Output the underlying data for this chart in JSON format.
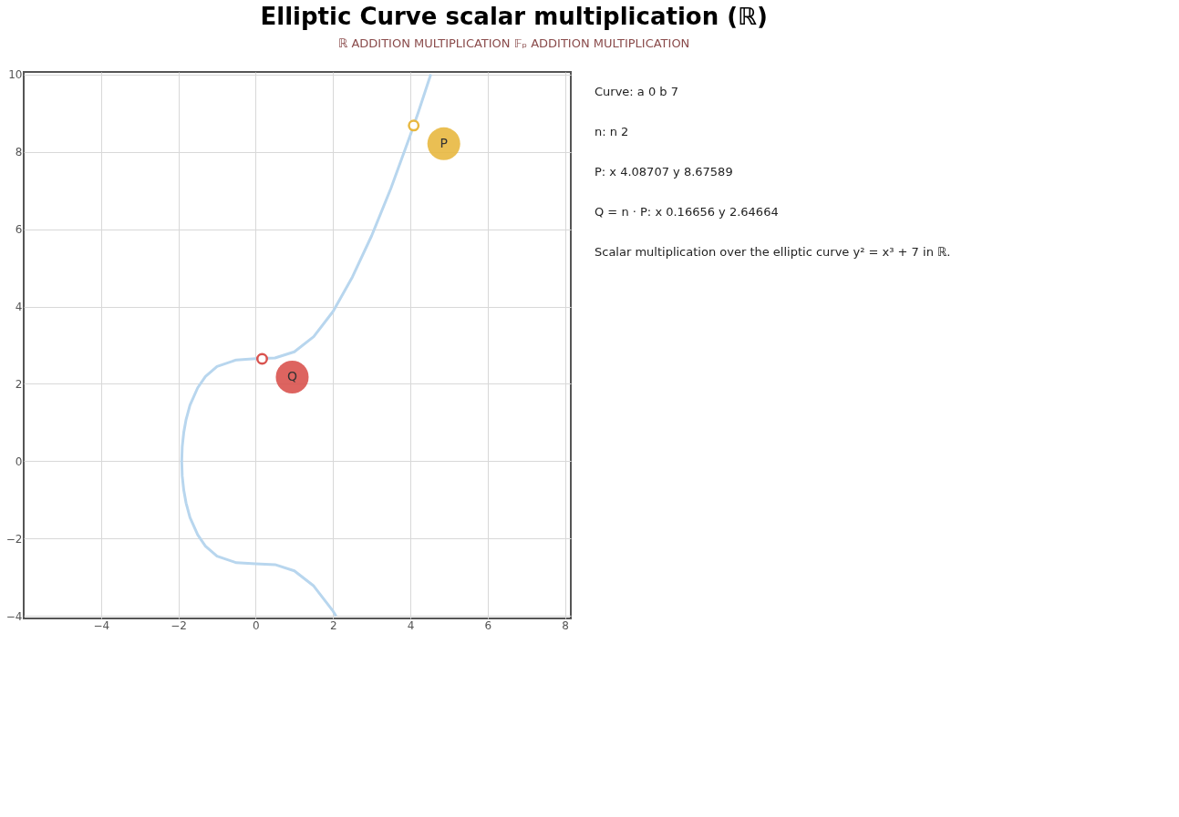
{
  "chart_data": {
    "type": "line",
    "title": "Elliptic Curve scalar multiplication (ℝ)",
    "subtitle": "ℝ    ADDITION    MULTIPLICATION        𝔽ₚ    ADDITION    MULTIPLICATION",
    "xlim": [
      -6,
      8.15
    ],
    "ylim": [
      -4.06,
      10.06
    ],
    "xticks": [
      -4,
      -2,
      0,
      2,
      4,
      6,
      8
    ],
    "yticks": [
      -4,
      -2,
      0,
      2,
      4,
      6,
      8,
      10
    ],
    "grid": true,
    "series": [
      {
        "color": "#b8d6ee",
        "x": [
          4.53,
          4.2,
          4.0,
          3.5,
          3.0,
          2.5,
          2.0,
          1.5,
          1.0,
          0.5,
          0,
          -0.5,
          -1.0,
          -1.3,
          -1.5,
          -1.7,
          -1.8,
          -1.86,
          -1.9,
          -1.913,
          -1.9,
          -1.86,
          -1.8,
          -1.7,
          -1.5,
          -1.3,
          -1.0,
          -0.5,
          0,
          0.5,
          1.0,
          1.5,
          2.0,
          2.08
        ],
        "values": [
          10.0,
          9.0,
          8.43,
          7.06,
          5.83,
          4.76,
          3.87,
          3.22,
          2.83,
          2.67,
          2.65,
          2.62,
          2.45,
          2.19,
          1.9,
          1.45,
          1.08,
          0.75,
          0.38,
          0,
          -0.38,
          -0.75,
          -1.08,
          -1.45,
          -1.9,
          -2.19,
          -2.45,
          -2.62,
          -2.65,
          -2.67,
          -2.83,
          -3.22,
          -3.87,
          -4.0
        ]
      },
      {
        "name": "P",
        "type": "scatter",
        "marker": "circle",
        "color": "#e8b840",
        "x": [
          4.08707
        ],
        "values": [
          8.67589
        ]
      },
      {
        "name": "Q",
        "type": "scatter",
        "marker": "circle",
        "color": "#d9534f",
        "x": [
          0.16656
        ],
        "values": [
          2.64664
        ]
      }
    ],
    "annotations": [
      "Curve:  a 0   b 7",
      "n:  n 2",
      "P:  x 4.08707   y 8.67589",
      "Q = n · P:  x 0.16656   y 2.64664",
      "Scalar multiplication over the elliptic curve y² = x³ + 7 in ℝ."
    ]
  }
}
